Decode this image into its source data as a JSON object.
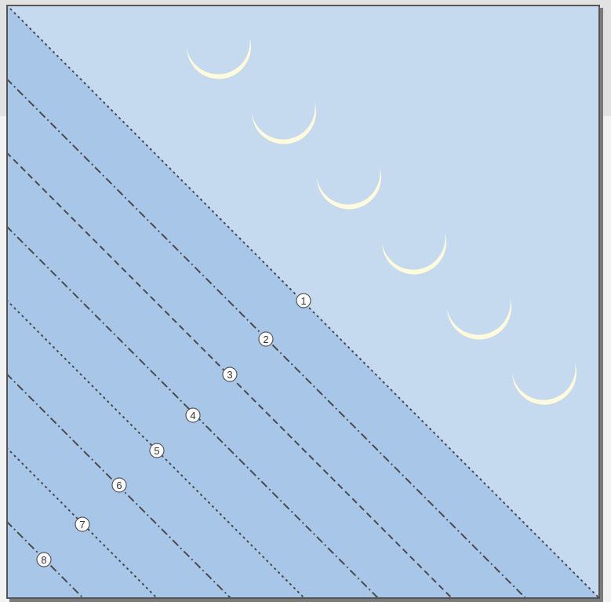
{
  "diagram": {
    "colors": {
      "sky": "#c5d9ef",
      "folded_region": "#a8c6e8",
      "moon": "#fffbdc",
      "border": "#555555",
      "line": "#4a4a4a"
    },
    "moon_count": 6,
    "fold_lines": [
      {
        "label": "1",
        "style": "dotted"
      },
      {
        "label": "2",
        "style": "dash-dot"
      },
      {
        "label": "3",
        "style": "dashed"
      },
      {
        "label": "4",
        "style": "dash-dot"
      },
      {
        "label": "5",
        "style": "dotted"
      },
      {
        "label": "6",
        "style": "dash-dot"
      },
      {
        "label": "7",
        "style": "dotted"
      },
      {
        "label": "8",
        "style": "dash-dot"
      }
    ]
  }
}
